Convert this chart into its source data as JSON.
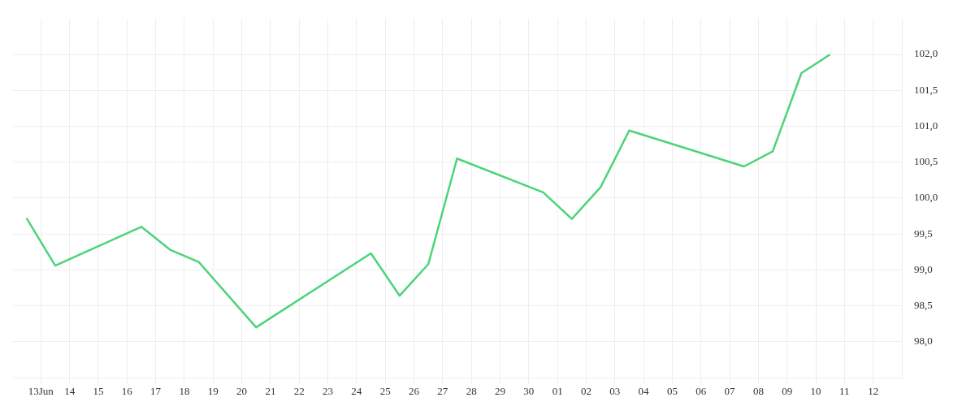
{
  "chart_data": {
    "type": "line",
    "x": [
      "--06-12T12:00",
      "--06-13T12:00",
      "--06-16T12:00",
      "--06-17T12:00",
      "--06-18T12:00",
      "--06-20T12:00",
      "--06-24T12:00",
      "--06-25T12:00",
      "--06-26T12:00",
      "--06-27T12:00",
      "--06-30T12:00",
      "--07-01T12:00",
      "--07-02T12:00",
      "--07-03T12:00",
      "--07-07T12:00",
      "--07-08T12:00",
      "--07-09T12:00",
      "--07-10T12:00"
    ],
    "series": [
      {
        "color": "#4cd47a",
        "values": [
          99.72,
          99.06,
          99.6,
          99.28,
          99.11,
          98.2,
          99.23,
          98.64,
          99.08,
          100.55,
          100.08,
          99.71,
          100.15,
          100.94,
          100.44,
          100.65,
          101.74,
          102.0
        ]
      }
    ],
    "xlim": [
      "--06-12",
      "--07-13"
    ],
    "xticks": [
      {
        "value": "--06-13",
        "label": "13Jun"
      },
      {
        "value": "--06-14",
        "label": "14"
      },
      {
        "value": "--06-15",
        "label": "15"
      },
      {
        "value": "--06-16",
        "label": "16"
      },
      {
        "value": "--06-17",
        "label": "17"
      },
      {
        "value": "--06-18",
        "label": "18"
      },
      {
        "value": "--06-19",
        "label": "19"
      },
      {
        "value": "--06-20",
        "label": "20"
      },
      {
        "value": "--06-21",
        "label": "21"
      },
      {
        "value": "--06-22",
        "label": "22"
      },
      {
        "value": "--06-23",
        "label": "23"
      },
      {
        "value": "--06-24",
        "label": "24"
      },
      {
        "value": "--06-25",
        "label": "25"
      },
      {
        "value": "--06-26",
        "label": "26"
      },
      {
        "value": "--06-27",
        "label": "27"
      },
      {
        "value": "--06-28",
        "label": "28"
      },
      {
        "value": "--06-29",
        "label": "29"
      },
      {
        "value": "--06-30",
        "label": "30"
      },
      {
        "value": "--07-01",
        "label": "01"
      },
      {
        "value": "--07-02",
        "label": "02"
      },
      {
        "value": "--07-03",
        "label": "03"
      },
      {
        "value": "--07-04",
        "label": "04"
      },
      {
        "value": "--07-05",
        "label": "05"
      },
      {
        "value": "--07-06",
        "label": "06"
      },
      {
        "value": "--07-07",
        "label": "07"
      },
      {
        "value": "--07-08",
        "label": "08"
      },
      {
        "value": "--07-09",
        "label": "09"
      },
      {
        "value": "--07-10",
        "label": "10"
      },
      {
        "value": "--07-11",
        "label": "11"
      },
      {
        "value": "--07-12",
        "label": "12"
      }
    ],
    "ylim": [
      97.5,
      102.5
    ],
    "yticks": [
      {
        "value": 98,
        "label": "98,0"
      },
      {
        "value": 98.5,
        "label": "98,5"
      },
      {
        "value": 99,
        "label": "99,0"
      },
      {
        "value": 99.5,
        "label": "99,5"
      },
      {
        "value": 100,
        "label": "100,0"
      },
      {
        "value": 100.5,
        "label": "100,5"
      },
      {
        "value": 101,
        "label": "101,0"
      },
      {
        "value": 101.5,
        "label": "101,5"
      },
      {
        "value": 102,
        "label": "102,0"
      }
    ],
    "grid": true,
    "legend": false,
    "marker": "none",
    "line_style": "solid"
  }
}
